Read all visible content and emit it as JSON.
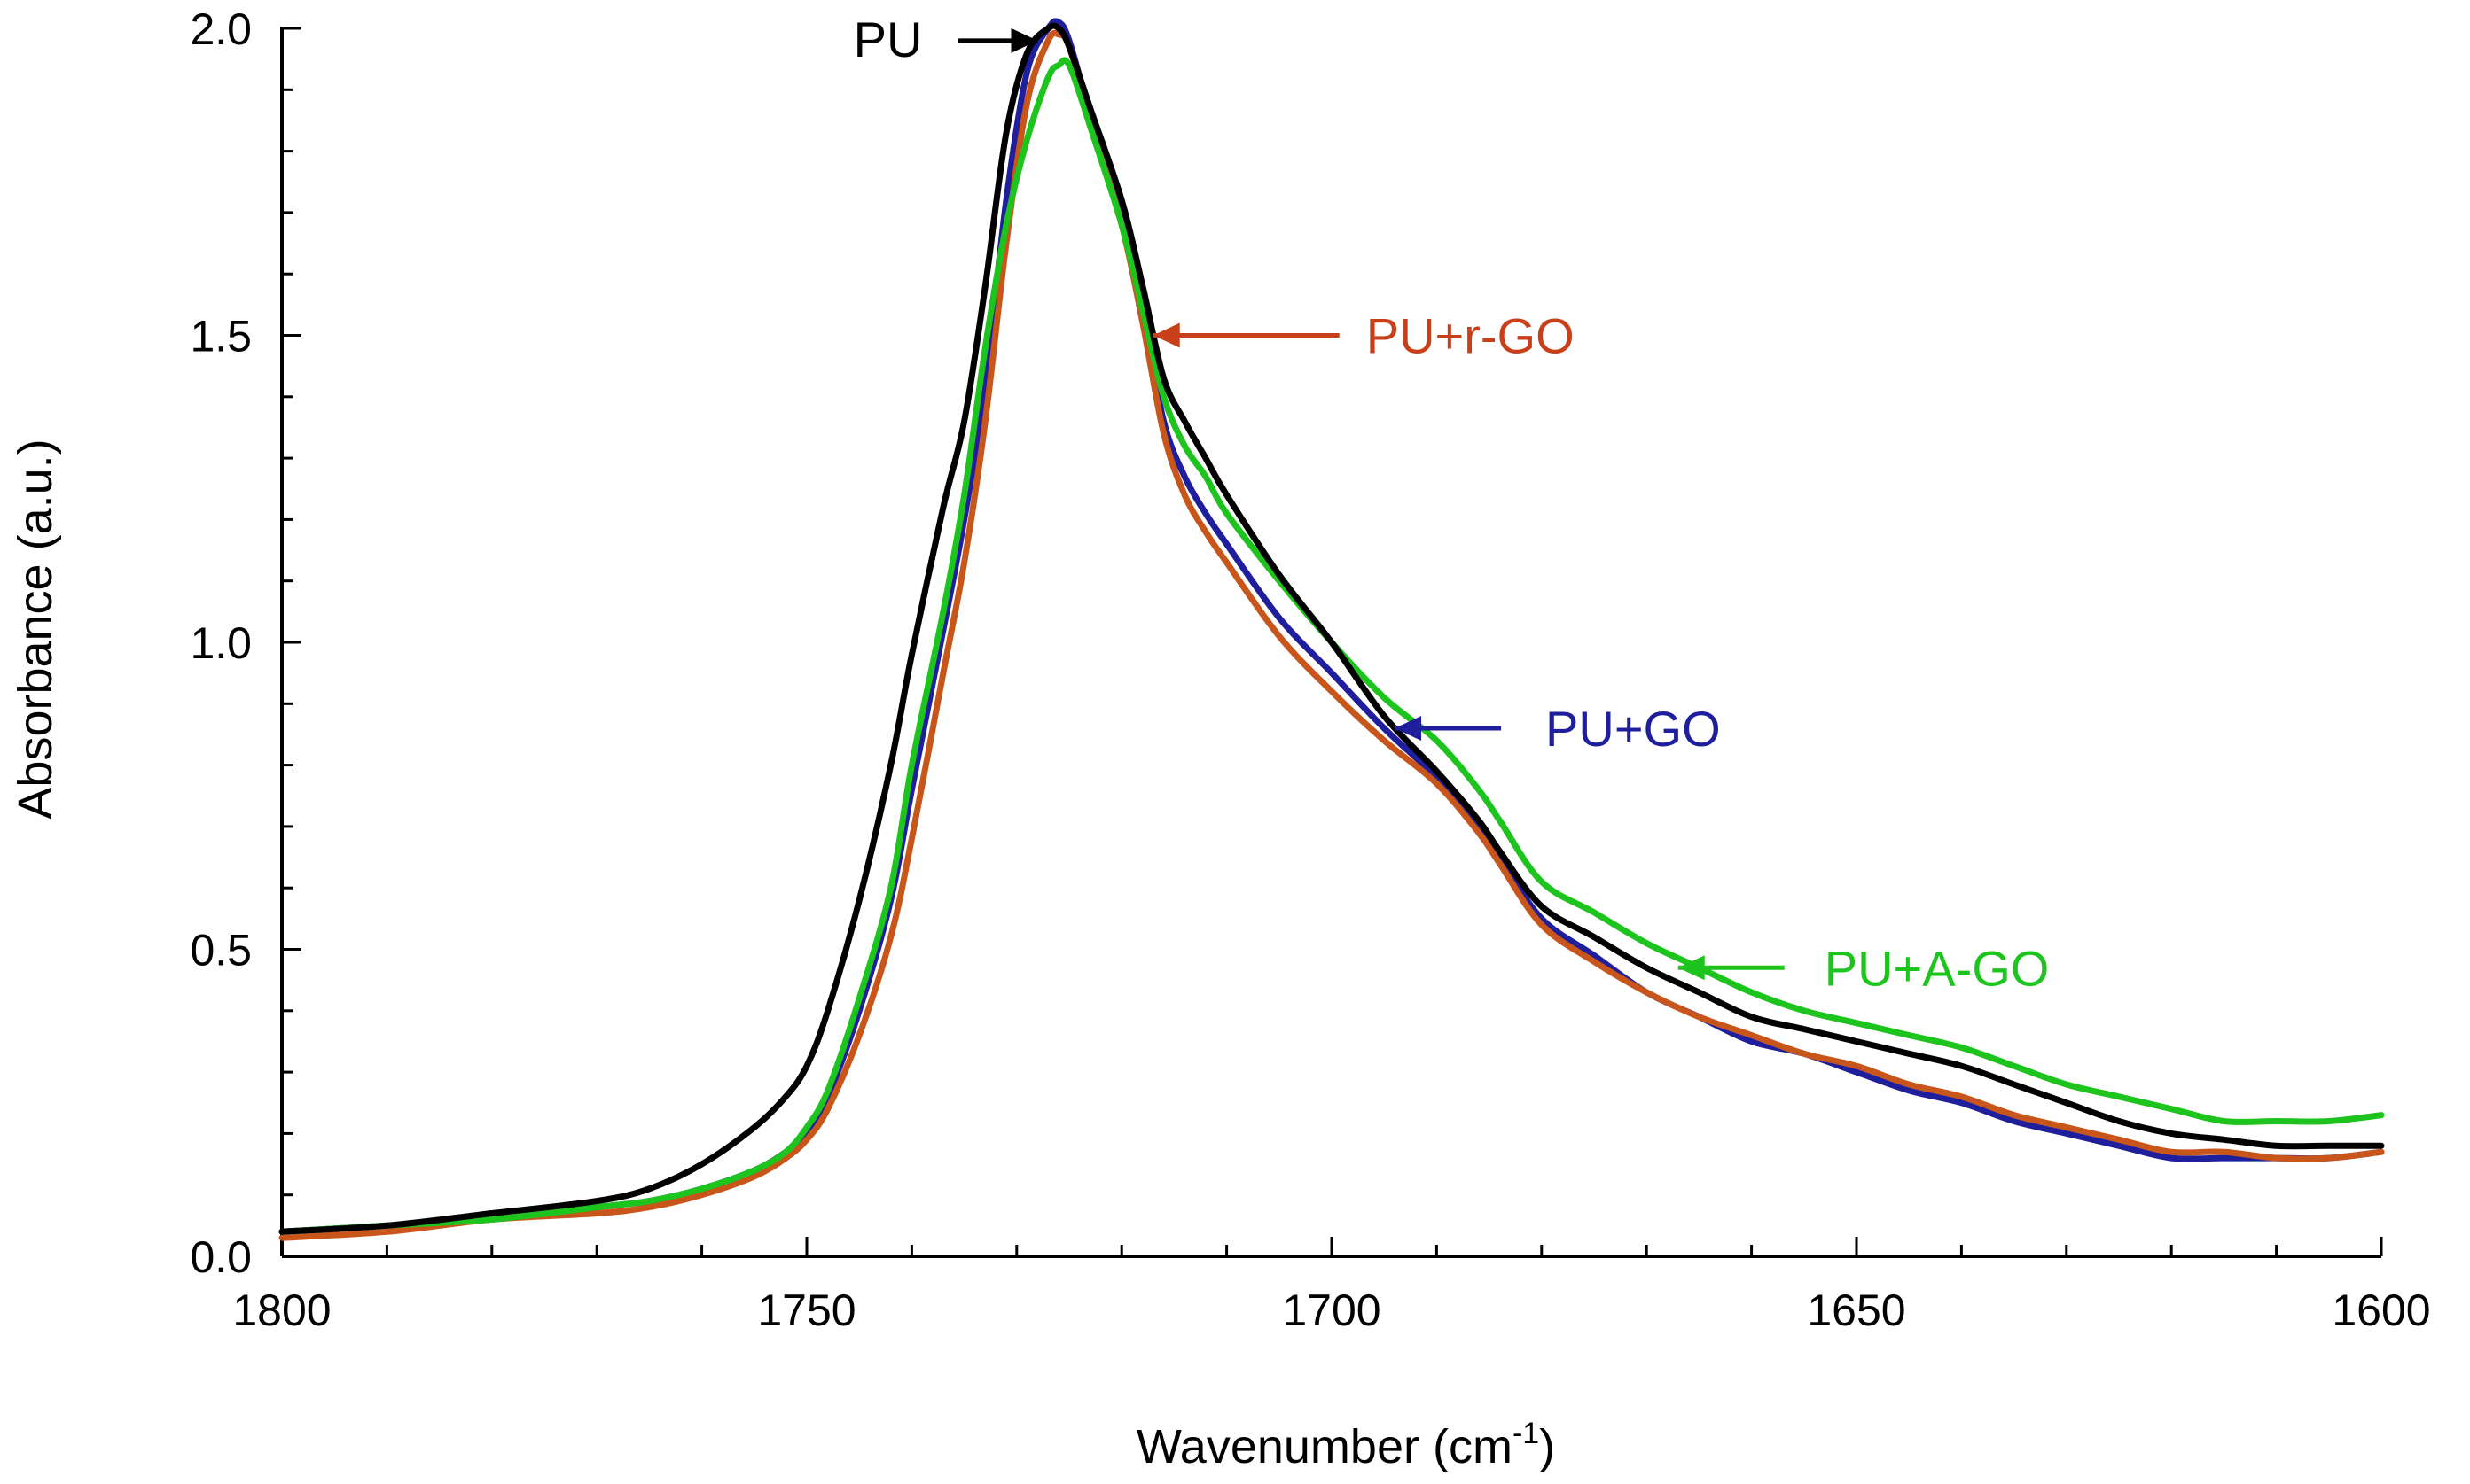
{
  "chart_data": {
    "type": "line",
    "title": "",
    "xlabel": "Wavenumber (cm",
    "xlabel_sup": "-1",
    "xlabel_suffix": ")",
    "ylabel": "Absorbance (a.u.)",
    "xlim": [
      1800,
      1600
    ],
    "ylim": [
      0.0,
      2.0
    ],
    "x_reversed": true,
    "x_ticks": [
      1800,
      1750,
      1700,
      1650,
      1600
    ],
    "x_tick_labels": [
      "1800",
      "1750",
      "1700",
      "1650",
      "1600"
    ],
    "y_ticks": [
      0.0,
      0.5,
      1.0,
      1.5,
      2.0
    ],
    "y_tick_labels": [
      "0.0",
      "0.5",
      "1.0",
      "1.5",
      "2.0"
    ],
    "grid": false,
    "series": [
      {
        "name": "PU+GO",
        "color": "#1f1f9e",
        "x": [
          1800,
          1790,
          1780,
          1770,
          1765,
          1760,
          1755,
          1752,
          1750,
          1748,
          1745,
          1742,
          1740,
          1737,
          1735,
          1733,
          1731,
          1729,
          1727,
          1726,
          1725,
          1723,
          1720,
          1718,
          1716,
          1714,
          1712,
          1710,
          1705,
          1700,
          1695,
          1690,
          1686,
          1684,
          1680,
          1675,
          1670,
          1665,
          1660,
          1655,
          1650,
          1645,
          1640,
          1635,
          1630,
          1625,
          1620,
          1615,
          1610,
          1605,
          1600
        ],
        "y": [
          0.04,
          0.05,
          0.06,
          0.08,
          0.09,
          0.11,
          0.14,
          0.17,
          0.2,
          0.26,
          0.4,
          0.58,
          0.76,
          1.02,
          1.2,
          1.42,
          1.72,
          1.93,
          2.0,
          2.01,
          1.98,
          1.86,
          1.69,
          1.54,
          1.36,
          1.27,
          1.21,
          1.16,
          1.04,
          0.95,
          0.86,
          0.78,
          0.7,
          0.65,
          0.55,
          0.49,
          0.43,
          0.39,
          0.35,
          0.33,
          0.3,
          0.27,
          0.25,
          0.22,
          0.2,
          0.18,
          0.16,
          0.16,
          0.16,
          0.16,
          0.17
        ]
      },
      {
        "name": "PU+r-GO",
        "color": "#c8561a",
        "x": [
          1800,
          1790,
          1780,
          1770,
          1765,
          1760,
          1755,
          1752,
          1750,
          1748,
          1745,
          1742,
          1740,
          1737,
          1735,
          1733,
          1731,
          1729,
          1727,
          1726,
          1725,
          1723,
          1720,
          1718,
          1716,
          1714,
          1712,
          1710,
          1705,
          1700,
          1695,
          1690,
          1686,
          1684,
          1680,
          1675,
          1670,
          1665,
          1660,
          1655,
          1650,
          1645,
          1640,
          1635,
          1630,
          1625,
          1620,
          1615,
          1610,
          1605,
          1600
        ],
        "y": [
          0.03,
          0.04,
          0.06,
          0.07,
          0.08,
          0.1,
          0.13,
          0.16,
          0.19,
          0.24,
          0.36,
          0.52,
          0.68,
          0.95,
          1.13,
          1.36,
          1.65,
          1.88,
          1.98,
          1.99,
          1.97,
          1.85,
          1.68,
          1.52,
          1.34,
          1.24,
          1.18,
          1.13,
          1.01,
          0.92,
          0.84,
          0.77,
          0.69,
          0.64,
          0.54,
          0.48,
          0.43,
          0.39,
          0.36,
          0.33,
          0.31,
          0.28,
          0.26,
          0.23,
          0.21,
          0.19,
          0.17,
          0.17,
          0.16,
          0.16,
          0.17
        ]
      },
      {
        "name": "PU+A-GO",
        "color": "#1ec41e",
        "x": [
          1800,
          1790,
          1780,
          1770,
          1765,
          1760,
          1755,
          1752,
          1750,
          1748,
          1745,
          1742,
          1740,
          1737,
          1735,
          1733,
          1731,
          1729,
          1727,
          1726,
          1725,
          1723,
          1720,
          1718,
          1716,
          1714,
          1712,
          1710,
          1705,
          1700,
          1695,
          1690,
          1686,
          1684,
          1680,
          1675,
          1670,
          1665,
          1660,
          1655,
          1650,
          1645,
          1640,
          1635,
          1630,
          1625,
          1620,
          1615,
          1610,
          1605,
          1600
        ],
        "y": [
          0.04,
          0.05,
          0.06,
          0.08,
          0.09,
          0.11,
          0.14,
          0.17,
          0.21,
          0.27,
          0.42,
          0.6,
          0.8,
          1.05,
          1.24,
          1.48,
          1.68,
          1.82,
          1.92,
          1.94,
          1.94,
          1.84,
          1.68,
          1.54,
          1.4,
          1.32,
          1.27,
          1.21,
          1.1,
          1.0,
          0.91,
          0.84,
          0.76,
          0.71,
          0.61,
          0.56,
          0.51,
          0.47,
          0.43,
          0.4,
          0.38,
          0.36,
          0.34,
          0.31,
          0.28,
          0.26,
          0.24,
          0.22,
          0.22,
          0.22,
          0.23
        ]
      },
      {
        "name": "PU",
        "color": "#000000",
        "x": [
          1800,
          1790,
          1780,
          1770,
          1765,
          1760,
          1755,
          1752,
          1750,
          1748,
          1745,
          1742,
          1740,
          1737,
          1735,
          1733,
          1731,
          1729,
          1727,
          1726,
          1725,
          1723,
          1720,
          1718,
          1716,
          1714,
          1712,
          1710,
          1705,
          1700,
          1695,
          1690,
          1686,
          1684,
          1680,
          1675,
          1670,
          1665,
          1660,
          1655,
          1650,
          1645,
          1640,
          1635,
          1630,
          1625,
          1620,
          1615,
          1610,
          1605,
          1600
        ],
        "y": [
          0.04,
          0.05,
          0.07,
          0.09,
          0.11,
          0.15,
          0.21,
          0.26,
          0.31,
          0.4,
          0.58,
          0.8,
          0.98,
          1.22,
          1.36,
          1.58,
          1.83,
          1.96,
          2.0,
          2.0,
          1.97,
          1.87,
          1.72,
          1.58,
          1.43,
          1.36,
          1.3,
          1.24,
          1.11,
          1.0,
          0.88,
          0.79,
          0.71,
          0.66,
          0.57,
          0.52,
          0.47,
          0.43,
          0.39,
          0.37,
          0.35,
          0.33,
          0.31,
          0.28,
          0.25,
          0.22,
          0.2,
          0.19,
          0.18,
          0.18,
          0.18
        ]
      }
    ],
    "annotations": [
      {
        "text": "PU",
        "color": "#000000",
        "x": 1728,
        "y": 1.98
      },
      {
        "text": "PU+r-GO",
        "color": "#c8401a",
        "x": 1717,
        "y": 1.5
      },
      {
        "text": "PU+GO",
        "color": "#1f1f9e",
        "x": 1694,
        "y": 0.86
      },
      {
        "text": "PU+A-GO",
        "color": "#1ec41e",
        "x": 1667,
        "y": 0.47
      }
    ]
  }
}
